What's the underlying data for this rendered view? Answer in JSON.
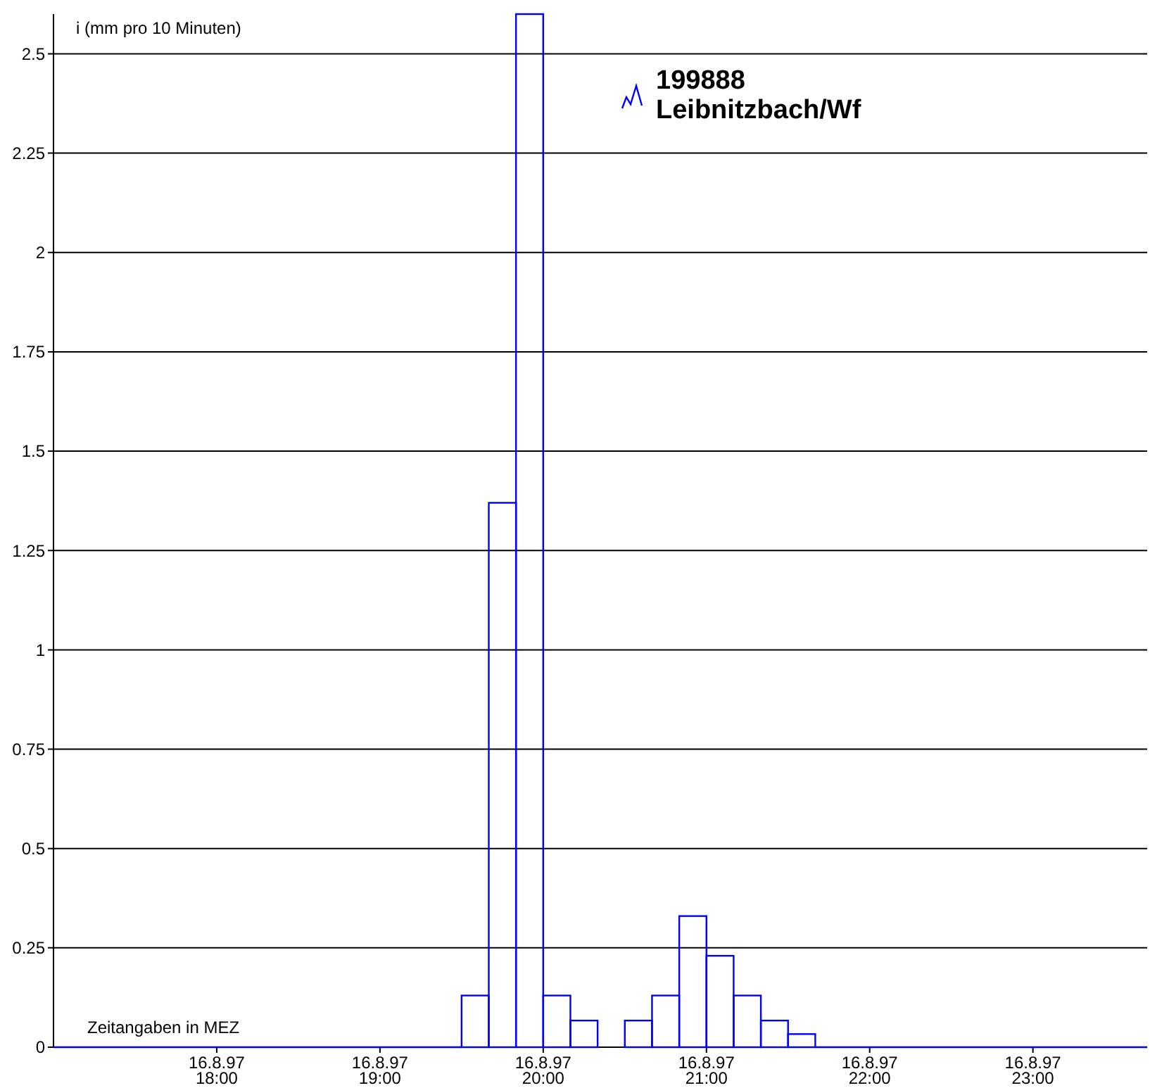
{
  "chart_data": {
    "type": "histogram",
    "ylabel": "i (mm pro 10 Minuten)",
    "annotations": [
      "Zeitangaben in MEZ"
    ],
    "bins": [
      "1997-08-16T19:30",
      "1997-08-16T19:40",
      "1997-08-16T19:50",
      "1997-08-16T20:00",
      "1997-08-16T20:10",
      "1997-08-16T20:20",
      "1997-08-16T20:30",
      "1997-08-16T20:40",
      "1997-08-16T20:50",
      "1997-08-16T21:00",
      "1997-08-16T21:10",
      "1997-08-16T21:20",
      "1997-08-16T21:30",
      "1997-08-16T21:40"
    ],
    "series": [
      {
        "name": "199888\nLeibnitzbach/Wf",
        "color": "#0000ff",
        "values": [
          0.13,
          1.37,
          2.6,
          0.13,
          0.067,
          0,
          0.067,
          0.13,
          0.33,
          0.23,
          0.13,
          0.067,
          0.033
        ]
      }
    ],
    "xlim": [
      "1997-08-16T17:00",
      "1997-08-16T23:42"
    ],
    "xticks": [
      {
        "value": "1997-08-16T18:00",
        "label": "16.8.97\n18:00"
      },
      {
        "value": "1997-08-16T19:00",
        "label": "16.8.97\n19:00"
      },
      {
        "value": "1997-08-16T20:00",
        "label": "16.8.97\n20:00"
      },
      {
        "value": "1997-08-16T21:00",
        "label": "16.8.97\n21:00"
      },
      {
        "value": "1997-08-16T22:00",
        "label": "16.8.97\n22:00"
      },
      {
        "value": "1997-08-16T23:00",
        "label": "16.8.97\n23:00"
      }
    ],
    "ylim": [
      0,
      2.6
    ],
    "yticks": [
      0,
      0.25,
      0.5,
      0.75,
      1,
      1.25,
      1.5,
      1.75,
      2,
      2.25,
      2.5
    ],
    "grid": "y",
    "legend": "top right"
  }
}
